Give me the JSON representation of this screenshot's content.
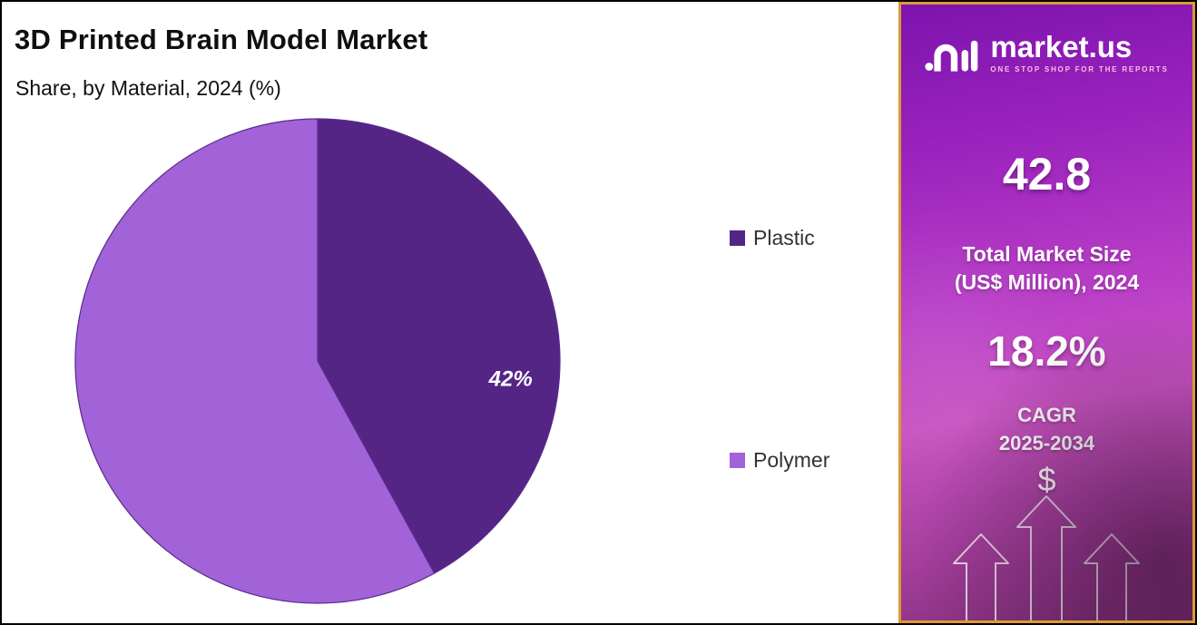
{
  "chart_data": {
    "type": "pie",
    "title": "3D Printed Brain Model Market",
    "subtitle": "Share, by Material, 2024 (%)",
    "categories": [
      "Plastic",
      "Polymer"
    ],
    "values": [
      42,
      58
    ],
    "colors": [
      "#552586",
      "#A262D8"
    ],
    "data_labels": [
      "42%",
      null
    ],
    "start_angle_deg": 0,
    "direction": "clockwise",
    "legend_position": "right",
    "slice_stroke_color": "#5a2a8c"
  },
  "sidebar": {
    "logo": {
      "text": "market.us",
      "tagline": "ONE STOP SHOP FOR THE REPORTS"
    },
    "stats": {
      "market_size_value": "42.8",
      "market_size_label_line1": "Total Market Size",
      "market_size_label_line2": "(US$ Million), 2024",
      "cagr_value": "18.2%",
      "cagr_label_line1": "CAGR",
      "cagr_label_line2": "2025-2034",
      "dollar_symbol": "$"
    },
    "accent_border_color": "#DC9A33"
  }
}
